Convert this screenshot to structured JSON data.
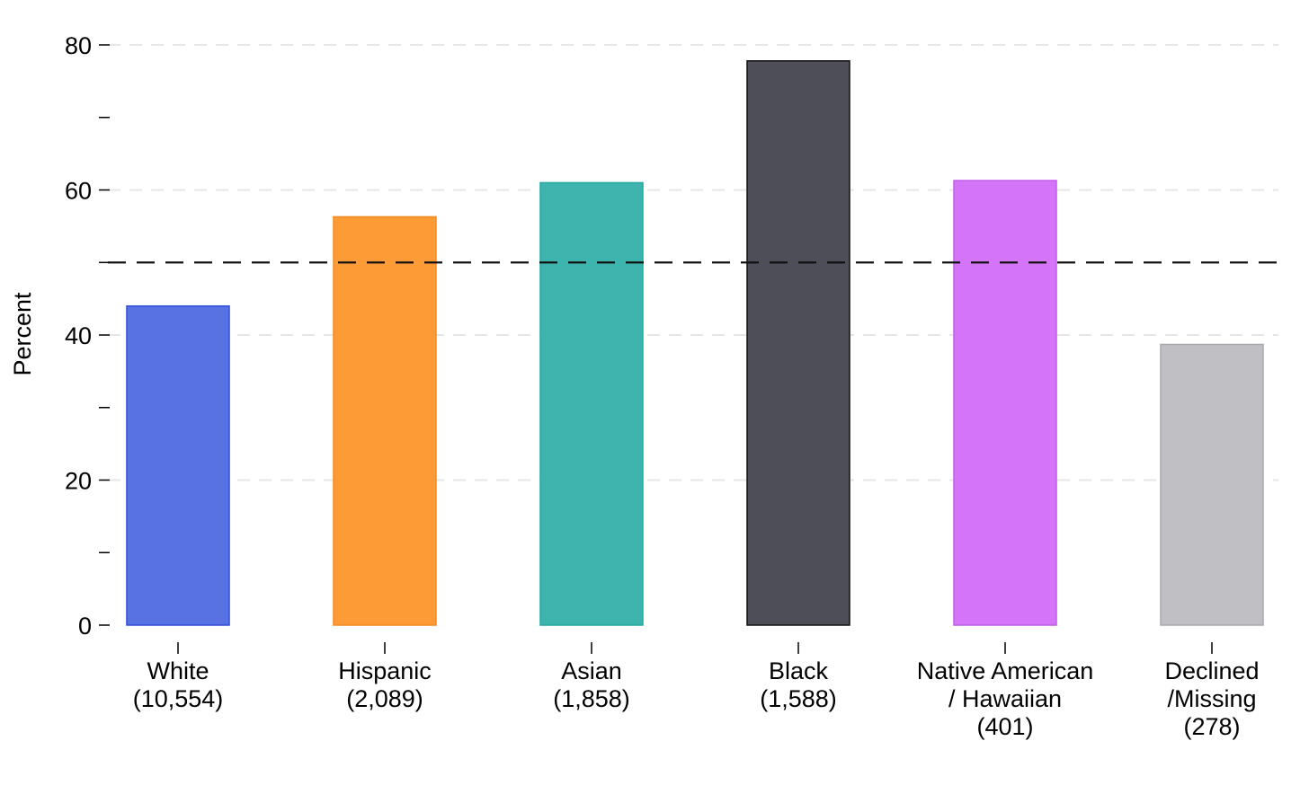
{
  "chart_data": {
    "type": "bar",
    "title": "",
    "xlabel": "",
    "ylabel": "Percent",
    "ylim": [
      0,
      80
    ],
    "y_ticks": [
      0,
      20,
      40,
      60,
      80
    ],
    "y_minor_ticks": [
      10,
      30,
      50,
      70
    ],
    "grid": "horizontal dashed",
    "reference_line": 50,
    "categories": [
      [
        "White",
        "(10,554)"
      ],
      [
        "Hispanic",
        "(2,089)"
      ],
      [
        "Asian",
        "(1,858)"
      ],
      [
        "Black",
        "(1,588)"
      ],
      [
        "Native American",
        "/ Hawaiian",
        "(401)"
      ],
      [
        "Declined",
        "/Missing",
        "(278)"
      ]
    ],
    "values": [
      44,
      56.3,
      61,
      77.8,
      61.3,
      38.7
    ],
    "colors": [
      "#5872e4",
      "#fd9b37",
      "#3db5ae",
      "#4e4e58",
      "#d475f8",
      "#c0c0c4"
    ],
    "edge_colors": [
      "#2f4fd8",
      "#f58a1f",
      "#22a89f",
      "#111111",
      "#c25ce8",
      "#a8a8ae"
    ]
  }
}
